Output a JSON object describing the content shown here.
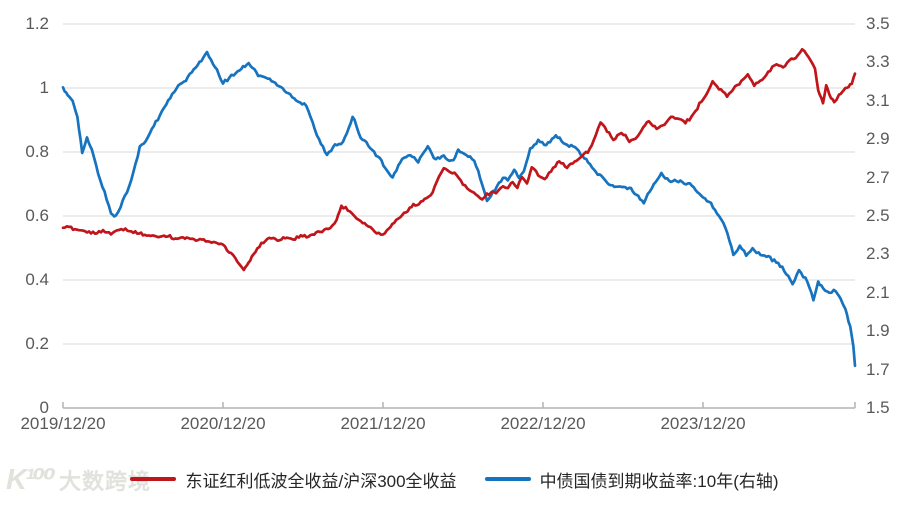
{
  "watermark": {
    "logo": "K¹⁰⁰",
    "text": "大数跨境"
  },
  "legend": {
    "items": [
      {
        "label": "东证红利低波全收益/沪深300全收益",
        "color": "#c0151a"
      },
      {
        "label": "中债国债到期收益率:10年(右轴)",
        "color": "#1673c0"
      }
    ]
  },
  "chart_data": {
    "type": "line",
    "title": "",
    "grid": true,
    "legend_position": "bottom-center",
    "style": {
      "grid_color": "#d9d9d9",
      "axis_color": "#b3b3b3",
      "tick_label_color": "#595959"
    },
    "x_axis": {
      "tick_labels": [
        "2019/12/20",
        "2020/12/20",
        "2021/12/20",
        "2022/12/20",
        "2023/12/20"
      ],
      "tick_years": [
        0,
        1,
        2,
        3,
        4
      ],
      "max_years": 4.95
    },
    "left_axis": {
      "min": 0,
      "max": 1.2,
      "tick_labels": [
        "1.2",
        "1",
        "0.8",
        "0.6",
        "0.4",
        "0.2",
        "0"
      ]
    },
    "right_axis": {
      "min": 1.5,
      "max": 3.5,
      "tick_labels": [
        "3.5",
        "3.3",
        "3.1",
        "2.9",
        "2.7",
        "2.5",
        "2.3",
        "2.1",
        "1.9",
        "1.7",
        "1.5"
      ]
    },
    "series": [
      {
        "name": "中债国债到期收益率:10年(右轴)",
        "axis": "right",
        "color": "#1673c0",
        "jitter": 0.012,
        "points": [
          [
            0.0,
            3.17
          ],
          [
            0.03,
            3.13
          ],
          [
            0.06,
            3.1
          ],
          [
            0.09,
            3.02
          ],
          [
            0.12,
            2.83
          ],
          [
            0.15,
            2.9
          ],
          [
            0.18,
            2.84
          ],
          [
            0.22,
            2.72
          ],
          [
            0.26,
            2.62
          ],
          [
            0.3,
            2.52
          ],
          [
            0.33,
            2.49
          ],
          [
            0.36,
            2.54
          ],
          [
            0.4,
            2.63
          ],
          [
            0.44,
            2.73
          ],
          [
            0.48,
            2.86
          ],
          [
            0.53,
            2.9
          ],
          [
            0.58,
            2.98
          ],
          [
            0.62,
            3.05
          ],
          [
            0.67,
            3.12
          ],
          [
            0.72,
            3.18
          ],
          [
            0.78,
            3.22
          ],
          [
            0.83,
            3.28
          ],
          [
            0.9,
            3.35
          ],
          [
            0.95,
            3.27
          ],
          [
            1.0,
            3.18
          ],
          [
            1.04,
            3.22
          ],
          [
            1.08,
            3.24
          ],
          [
            1.16,
            3.29
          ],
          [
            1.22,
            3.23
          ],
          [
            1.28,
            3.21
          ],
          [
            1.35,
            3.17
          ],
          [
            1.42,
            3.13
          ],
          [
            1.47,
            3.1
          ],
          [
            1.52,
            3.07
          ],
          [
            1.56,
            2.98
          ],
          [
            1.6,
            2.9
          ],
          [
            1.65,
            2.82
          ],
          [
            1.7,
            2.88
          ],
          [
            1.75,
            2.89
          ],
          [
            1.81,
            3.02
          ],
          [
            1.86,
            2.91
          ],
          [
            1.92,
            2.85
          ],
          [
            1.98,
            2.8
          ],
          [
            2.06,
            2.69
          ],
          [
            2.12,
            2.8
          ],
          [
            2.17,
            2.82
          ],
          [
            2.22,
            2.78
          ],
          [
            2.28,
            2.85
          ],
          [
            2.33,
            2.8
          ],
          [
            2.38,
            2.82
          ],
          [
            2.44,
            2.79
          ],
          [
            2.47,
            2.85
          ],
          [
            2.52,
            2.82
          ],
          [
            2.57,
            2.78
          ],
          [
            2.62,
            2.67
          ],
          [
            2.65,
            2.58
          ],
          [
            2.7,
            2.64
          ],
          [
            2.75,
            2.7
          ],
          [
            2.78,
            2.69
          ],
          [
            2.82,
            2.74
          ],
          [
            2.85,
            2.7
          ],
          [
            2.88,
            2.73
          ],
          [
            2.92,
            2.86
          ],
          [
            2.97,
            2.9
          ],
          [
            3.02,
            2.88
          ],
          [
            3.08,
            2.91
          ],
          [
            3.14,
            2.88
          ],
          [
            3.2,
            2.86
          ],
          [
            3.27,
            2.8
          ],
          [
            3.33,
            2.72
          ],
          [
            3.4,
            2.67
          ],
          [
            3.48,
            2.65
          ],
          [
            3.55,
            2.64
          ],
          [
            3.63,
            2.56
          ],
          [
            3.68,
            2.64
          ],
          [
            3.74,
            2.71
          ],
          [
            3.8,
            2.68
          ],
          [
            3.87,
            2.67
          ],
          [
            3.93,
            2.66
          ],
          [
            4.0,
            2.6
          ],
          [
            4.05,
            2.56
          ],
          [
            4.1,
            2.5
          ],
          [
            4.14,
            2.44
          ],
          [
            4.19,
            2.3
          ],
          [
            4.23,
            2.35
          ],
          [
            4.27,
            2.3
          ],
          [
            4.31,
            2.33
          ],
          [
            4.36,
            2.31
          ],
          [
            4.42,
            2.29
          ],
          [
            4.47,
            2.25
          ],
          [
            4.52,
            2.21
          ],
          [
            4.56,
            2.15
          ],
          [
            4.6,
            2.23
          ],
          [
            4.64,
            2.17
          ],
          [
            4.69,
            2.06
          ],
          [
            4.72,
            2.16
          ],
          [
            4.75,
            2.13
          ],
          [
            4.79,
            2.11
          ],
          [
            4.83,
            2.12
          ],
          [
            4.86,
            2.08
          ],
          [
            4.89,
            2.02
          ],
          [
            4.92,
            1.93
          ],
          [
            4.94,
            1.82
          ],
          [
            4.95,
            1.72
          ]
        ]
      },
      {
        "name": "东证红利低波全收益/沪深300全收益",
        "axis": "left",
        "color": "#c0151a",
        "jitter": 0.006,
        "points": [
          [
            0.0,
            0.563
          ],
          [
            0.05,
            0.56
          ],
          [
            0.1,
            0.556
          ],
          [
            0.15,
            0.551
          ],
          [
            0.2,
            0.546
          ],
          [
            0.25,
            0.551
          ],
          [
            0.3,
            0.541
          ],
          [
            0.35,
            0.556
          ],
          [
            0.39,
            0.565
          ],
          [
            0.44,
            0.552
          ],
          [
            0.5,
            0.546
          ],
          [
            0.56,
            0.541
          ],
          [
            0.62,
            0.537
          ],
          [
            0.68,
            0.533
          ],
          [
            0.75,
            0.528
          ],
          [
            0.82,
            0.524
          ],
          [
            0.88,
            0.521
          ],
          [
            0.94,
            0.519
          ],
          [
            1.0,
            0.506
          ],
          [
            1.05,
            0.481
          ],
          [
            1.09,
            0.458
          ],
          [
            1.13,
            0.437
          ],
          [
            1.16,
            0.452
          ],
          [
            1.19,
            0.478
          ],
          [
            1.24,
            0.515
          ],
          [
            1.29,
            0.528
          ],
          [
            1.34,
            0.522
          ],
          [
            1.4,
            0.532
          ],
          [
            1.45,
            0.527
          ],
          [
            1.51,
            0.536
          ],
          [
            1.57,
            0.546
          ],
          [
            1.62,
            0.553
          ],
          [
            1.67,
            0.565
          ],
          [
            1.71,
            0.59
          ],
          [
            1.74,
            0.634
          ],
          [
            1.78,
            0.618
          ],
          [
            1.82,
            0.6
          ],
          [
            1.86,
            0.587
          ],
          [
            1.91,
            0.57
          ],
          [
            1.96,
            0.552
          ],
          [
            2.0,
            0.545
          ],
          [
            2.07,
            0.578
          ],
          [
            2.12,
            0.6
          ],
          [
            2.19,
            0.634
          ],
          [
            2.26,
            0.656
          ],
          [
            2.31,
            0.675
          ],
          [
            2.35,
            0.72
          ],
          [
            2.38,
            0.744
          ],
          [
            2.42,
            0.734
          ],
          [
            2.46,
            0.728
          ],
          [
            2.5,
            0.7
          ],
          [
            2.54,
            0.68
          ],
          [
            2.58,
            0.665
          ],
          [
            2.62,
            0.656
          ],
          [
            2.65,
            0.67
          ],
          [
            2.68,
            0.68
          ],
          [
            2.72,
            0.675
          ],
          [
            2.75,
            0.69
          ],
          [
            2.78,
            0.688
          ],
          [
            2.81,
            0.706
          ],
          [
            2.84,
            0.69
          ],
          [
            2.87,
            0.72
          ],
          [
            2.9,
            0.7
          ],
          [
            2.93,
            0.75
          ],
          [
            2.97,
            0.73
          ],
          [
            3.01,
            0.72
          ],
          [
            3.05,
            0.745
          ],
          [
            3.09,
            0.77
          ],
          [
            3.15,
            0.75
          ],
          [
            3.21,
            0.77
          ],
          [
            3.28,
            0.8
          ],
          [
            3.33,
            0.855
          ],
          [
            3.36,
            0.89
          ],
          [
            3.4,
            0.865
          ],
          [
            3.44,
            0.83
          ],
          [
            3.49,
            0.86
          ],
          [
            3.54,
            0.836
          ],
          [
            3.59,
            0.85
          ],
          [
            3.65,
            0.9
          ],
          [
            3.71,
            0.873
          ],
          [
            3.76,
            0.89
          ],
          [
            3.8,
            0.916
          ],
          [
            3.85,
            0.905
          ],
          [
            3.89,
            0.89
          ],
          [
            3.94,
            0.92
          ],
          [
            3.99,
            0.955
          ],
          [
            4.03,
            0.985
          ],
          [
            4.06,
            1.016
          ],
          [
            4.1,
            0.995
          ],
          [
            4.15,
            0.97
          ],
          [
            4.2,
            1.005
          ],
          [
            4.24,
            1.02
          ],
          [
            4.28,
            1.04
          ],
          [
            4.32,
            1.008
          ],
          [
            4.37,
            1.03
          ],
          [
            4.42,
            1.058
          ],
          [
            4.46,
            1.07
          ],
          [
            4.5,
            1.06
          ],
          [
            4.54,
            1.085
          ],
          [
            4.58,
            1.09
          ],
          [
            4.62,
            1.12
          ],
          [
            4.66,
            1.09
          ],
          [
            4.7,
            1.06
          ],
          [
            4.72,
            0.99
          ],
          [
            4.75,
            0.953
          ],
          [
            4.77,
            1.01
          ],
          [
            4.8,
            0.97
          ],
          [
            4.82,
            0.956
          ],
          [
            4.85,
            0.975
          ],
          [
            4.88,
            0.995
          ],
          [
            4.91,
            1.005
          ],
          [
            4.93,
            1.02
          ],
          [
            4.95,
            1.045
          ]
        ]
      }
    ]
  }
}
